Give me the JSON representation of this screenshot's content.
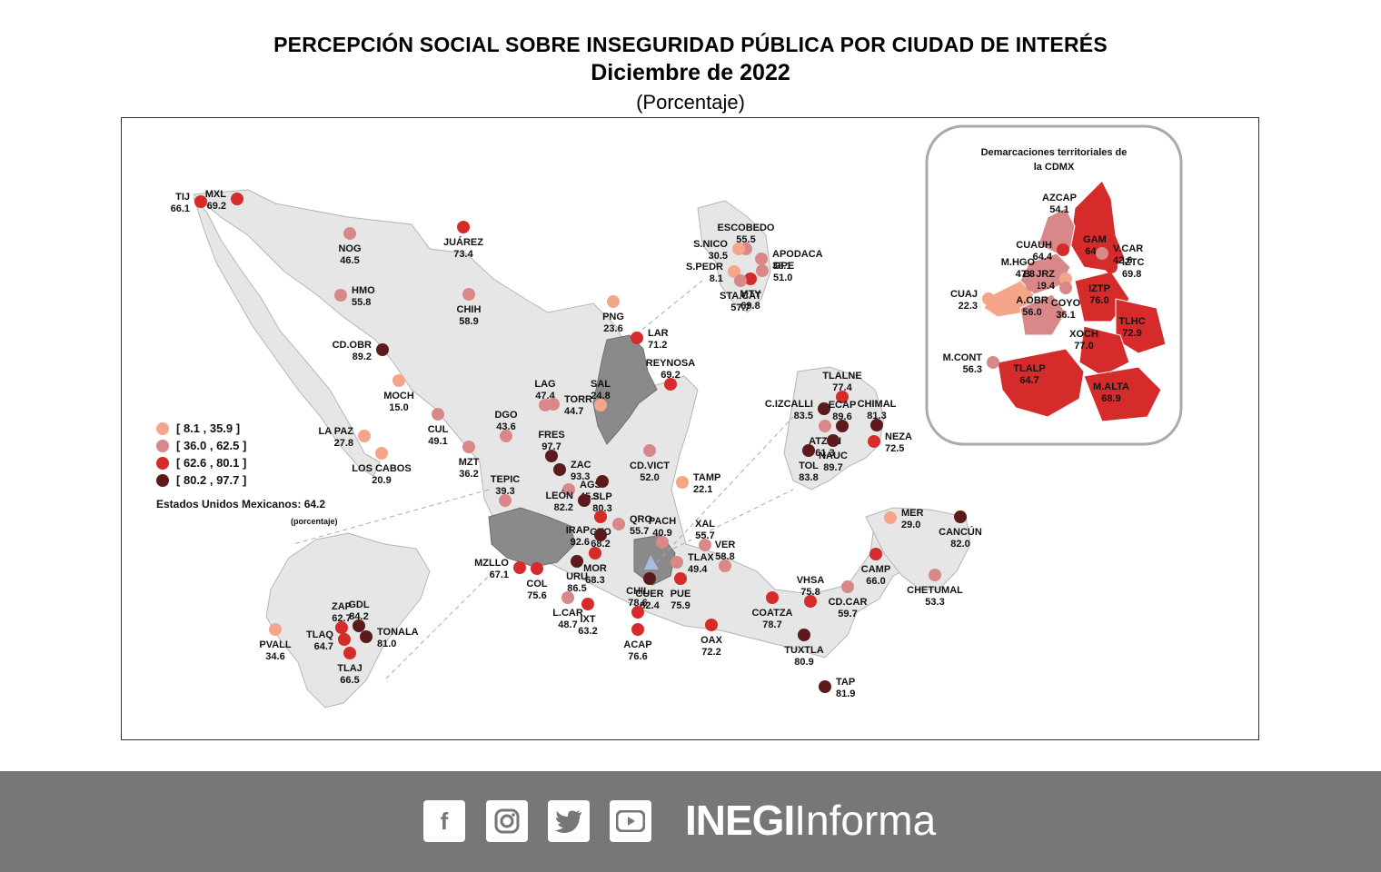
{
  "title": "PERCEPCIÓN SOCIAL SOBRE INSEGURIDAD PÚBLICA POR CIUDAD DE INTERÉS",
  "subtitle": "Diciembre de 2022",
  "unit": "(Porcentaje)",
  "inset_cdmx_title_1": "Demarcaciones territoriales de",
  "inset_cdmx_title_2": "la CDMX",
  "legend": [
    {
      "range": "[   8.1 , 35.9 ]",
      "color": "#f4a58a"
    },
    {
      "range": "[ 36.0 , 62.5 ]",
      "color": "#d9888a"
    },
    {
      "range": "[ 62.6 , 80.1 ]",
      "color": "#d62b2b"
    },
    {
      "range": "[ 80.2 , 97.7 ]",
      "color": "#5c1a1a"
    }
  ],
  "national_label": "Estados Unidos Mexicanos:  64.2",
  "national_unit": "(porcentaje)",
  "cities": [
    {
      "n": "TIJ",
      "v": "66.1"
    },
    {
      "n": "MXL",
      "v": "69.2"
    },
    {
      "n": "NOG",
      "v": "46.5"
    },
    {
      "n": "JUÁREZ",
      "v": "73.4"
    },
    {
      "n": "HMO",
      "v": "55.8"
    },
    {
      "n": "CHIH",
      "v": "58.9"
    },
    {
      "n": "PNG",
      "v": "23.6"
    },
    {
      "n": "LAR",
      "v": "71.2"
    },
    {
      "n": "CD.OBR",
      "v": "89.2"
    },
    {
      "n": "REYNOSA",
      "v": "69.2"
    },
    {
      "n": "MOCH",
      "v": "15.0"
    },
    {
      "n": "LAG",
      "v": "47.4"
    },
    {
      "n": "TORR",
      "v": "44.7"
    },
    {
      "n": "SAL",
      "v": "24.8"
    },
    {
      "n": "CUL",
      "v": "49.1"
    },
    {
      "n": "DGO",
      "v": "43.6"
    },
    {
      "n": "LA PAZ",
      "v": "27.8"
    },
    {
      "n": "LOS CABOS",
      "v": "20.9"
    },
    {
      "n": "MZT",
      "v": "36.2"
    },
    {
      "n": "FRES",
      "v": "97.7"
    },
    {
      "n": "ZAC",
      "v": "93.3"
    },
    {
      "n": "CD.VICT",
      "v": "52.0"
    },
    {
      "n": "TEPIC",
      "v": "39.3"
    },
    {
      "n": "AGS",
      "v": "45.3"
    },
    {
      "n": "SLP",
      "v": "80.3"
    },
    {
      "n": "TAMP",
      "v": "22.1"
    },
    {
      "n": "LEÓN",
      "v": "82.2"
    },
    {
      "n": "GTO",
      "v": "68.2"
    },
    {
      "n": "QRO",
      "v": "55.7"
    },
    {
      "n": "IRAP",
      "v": "92.6"
    },
    {
      "n": "PACH",
      "v": "40.9"
    },
    {
      "n": "XAL",
      "v": "55.7"
    },
    {
      "n": "MOR",
      "v": "68.3"
    },
    {
      "n": "MZLLO",
      "v": "67.1"
    },
    {
      "n": "COL",
      "v": "75.6"
    },
    {
      "n": "URU",
      "v": "86.5"
    },
    {
      "n": "TLAX",
      "v": "49.4"
    },
    {
      "n": "VER",
      "v": "58.8"
    },
    {
      "n": "CUER",
      "v": "82.4"
    },
    {
      "n": "PUE",
      "v": "75.9"
    },
    {
      "n": "L.CAR",
      "v": "48.7"
    },
    {
      "n": "IXT",
      "v": "63.2"
    },
    {
      "n": "CHIL",
      "v": "78.6"
    },
    {
      "n": "ACAP",
      "v": "76.6"
    },
    {
      "n": "OAX",
      "v": "72.2"
    },
    {
      "n": "COATZA",
      "v": "78.7"
    },
    {
      "n": "VHSA",
      "v": "75.8"
    },
    {
      "n": "CAMP",
      "v": "66.0"
    },
    {
      "n": "CD.CAR",
      "v": "59.7"
    },
    {
      "n": "TUXTLA",
      "v": "80.9"
    },
    {
      "n": "TAP",
      "v": "81.9"
    },
    {
      "n": "MER",
      "v": "29.0"
    },
    {
      "n": "CANCÚN",
      "v": "82.0"
    },
    {
      "n": "CHETUMAL",
      "v": "53.3"
    },
    {
      "n": "ESCOBEDO",
      "v": "55.5"
    },
    {
      "n": "S.NICO",
      "v": "30.5"
    },
    {
      "n": "APODACA",
      "v": "38.1"
    },
    {
      "n": "GPE",
      "v": "51.0"
    },
    {
      "n": "S.PEDR",
      "v": "8.1"
    },
    {
      "n": "MTY",
      "v": "69.8"
    },
    {
      "n": "STA.CAT",
      "v": "57.7"
    },
    {
      "n": "TLALNE",
      "v": "77.4"
    },
    {
      "n": "C.IZCALLI",
      "v": "83.5"
    },
    {
      "n": "ECAP",
      "v": "89.6"
    },
    {
      "n": "CHIMAL",
      "v": "81.3"
    },
    {
      "n": "ATZPN",
      "v": "61.3"
    },
    {
      "n": "NEZA",
      "v": "72.5"
    },
    {
      "n": "TOL",
      "v": "83.8"
    },
    {
      "n": "NAUC",
      "v": "89.7"
    },
    {
      "n": "ZAP",
      "v": "62.7"
    },
    {
      "n": "GDL",
      "v": "84.2"
    },
    {
      "n": "TLAQ",
      "v": "64.7"
    },
    {
      "n": "TONALA",
      "v": "81.0"
    },
    {
      "n": "TLAJ",
      "v": "66.5"
    },
    {
      "n": "PVALL",
      "v": "34.6"
    },
    {
      "n": "AZCAP",
      "v": "54.1"
    },
    {
      "n": "CUAUH",
      "v": "64.4"
    },
    {
      "n": "GAM",
      "v": "64.9"
    },
    {
      "n": "V.CAR",
      "v": "42.6"
    },
    {
      "n": "M.HGO",
      "v": "47.8"
    },
    {
      "n": "IZTC",
      "v": "69.8"
    },
    {
      "n": "B. JRZ",
      "v": "19.4"
    },
    {
      "n": "A.OBR",
      "v": "56.0"
    },
    {
      "n": "COYO",
      "v": "36.1"
    },
    {
      "n": "IZTP",
      "v": "76.0"
    },
    {
      "n": "CUAJ",
      "v": "22.3"
    },
    {
      "n": "TLHC",
      "v": "72.9"
    },
    {
      "n": "XOCH",
      "v": "77.0"
    },
    {
      "n": "M.CONT",
      "v": "56.3"
    },
    {
      "n": "TLALP",
      "v": "64.7"
    },
    {
      "n": "M.ALTA",
      "v": "68.9"
    }
  ],
  "footer": {
    "social": [
      "facebook-icon",
      "instagram-icon",
      "twitter-icon",
      "youtube-icon"
    ],
    "brand_bold": "INEGI",
    "brand_light": "Informa"
  }
}
